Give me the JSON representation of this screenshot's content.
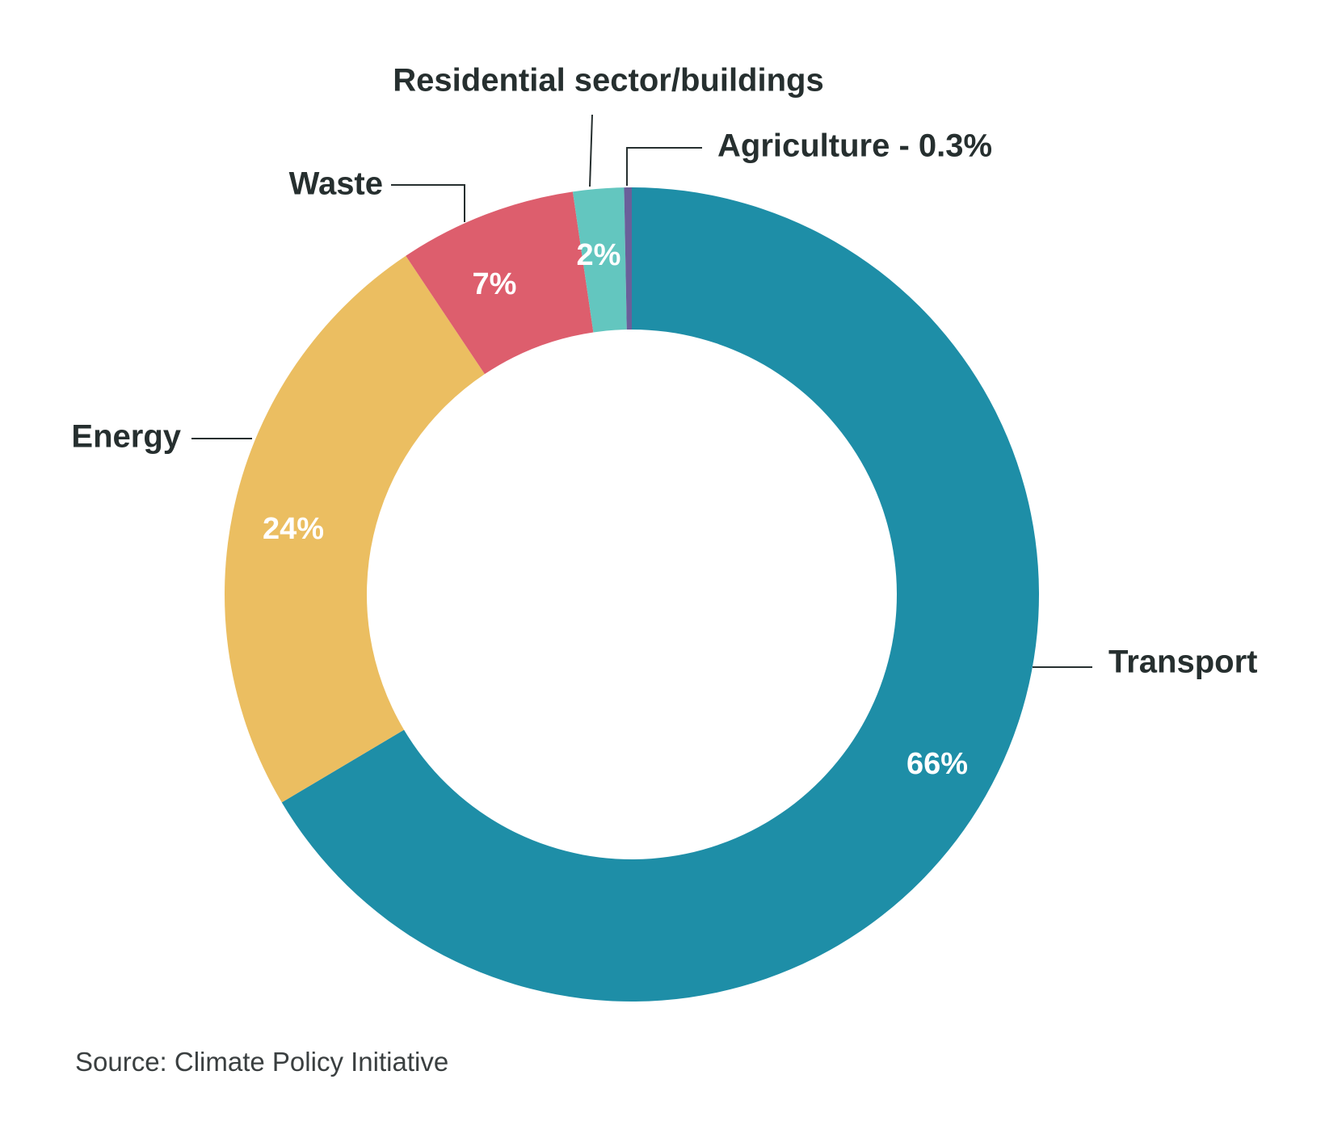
{
  "chart_data": {
    "type": "pie",
    "donut": true,
    "categories": [
      "Transport",
      "Energy",
      "Waste",
      "Residential sector/buildings",
      "Agriculture - 0.3%"
    ],
    "values": [
      66,
      24,
      7,
      2,
      0.3
    ],
    "value_labels": [
      "66%",
      "24%",
      "7%",
      "2%",
      ""
    ],
    "colors": [
      "#1e8ea7",
      "#ebbe61",
      "#dd5e6d",
      "#63c6bf",
      "#6a5f9a"
    ],
    "start_angle": "12 o'clock",
    "direction": "clockwise"
  },
  "source": "Source: Climate Policy Initiative"
}
